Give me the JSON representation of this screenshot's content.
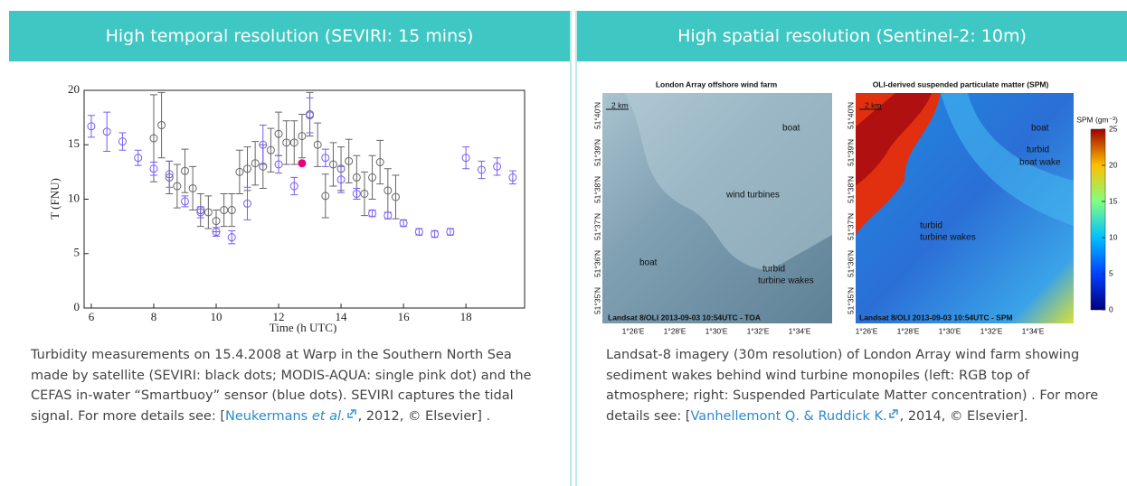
{
  "left_panel": {
    "title": "High temporal resolution (SEVIRI: 15 mins)",
    "chart_data": {
      "type": "scatter",
      "xlabel": "Time (h UTC)",
      "ylabel": "T (FNU)",
      "xlim": [
        5.77,
        19.88
      ],
      "ylim": [
        0,
        20
      ],
      "xticks": [
        6,
        8,
        10,
        12,
        14,
        16,
        18
      ],
      "yticks": [
        0,
        5,
        10,
        15,
        20
      ],
      "series": [
        {
          "color": "#666666",
          "marker": "open",
          "x": [
            8.0,
            8.25,
            8.5,
            8.75,
            9.0,
            9.25,
            9.5,
            9.75,
            10.0,
            10.25,
            10.5,
            10.75,
            11.0,
            11.25,
            11.5,
            11.75,
            12.0,
            12.25,
            12.5,
            12.75,
            13.0,
            13.25,
            13.5,
            13.75,
            14.0,
            14.25,
            14.5,
            14.75,
            15.0,
            15.25,
            15.5,
            15.75
          ],
          "values": [
            15.6,
            16.8,
            12.0,
            11.2,
            12.6,
            11.0,
            9.0,
            8.8,
            8.0,
            9.0,
            9.0,
            12.5,
            12.8,
            13.3,
            13.0,
            14.5,
            16.0,
            15.2,
            15.2,
            15.8,
            17.8,
            15.0,
            10.3,
            13.2,
            12.8,
            13.5,
            12.0,
            10.5,
            12.0,
            13.4,
            10.8,
            10.2
          ],
          "errors": [
            4.0,
            3.0,
            1.5,
            2.0,
            2.0,
            2.0,
            1.5,
            1.5,
            1.0,
            1.5,
            1.5,
            2.0,
            2.0,
            2.0,
            2.0,
            2.0,
            2.0,
            2.0,
            2.0,
            2.0,
            2.0,
            2.0,
            2.0,
            2.0,
            2.0,
            2.0,
            2.0,
            2.0,
            2.0,
            2.0,
            2.0,
            2.0
          ]
        },
        {
          "color": "#7b5cf0",
          "marker": "open",
          "x": [
            6.0,
            6.5,
            7.0,
            7.5,
            8.0,
            8.5,
            9.0,
            9.5,
            10.0,
            10.5,
            11.0,
            11.5,
            12.0,
            12.5,
            13.0,
            13.5,
            14.0,
            14.5,
            15.0,
            15.5,
            16.0,
            16.5,
            17.0,
            17.5,
            18.0,
            18.5,
            19.0,
            19.5
          ],
          "values": [
            16.7,
            16.2,
            15.3,
            13.8,
            12.8,
            12.3,
            9.8,
            8.8,
            7.0,
            6.5,
            9.6,
            15.0,
            13.2,
            11.2,
            17.7,
            13.8,
            11.8,
            10.5,
            8.7,
            8.5,
            7.8,
            7.0,
            6.8,
            7.0,
            13.8,
            12.7,
            13.0,
            12.0
          ],
          "errors": [
            1.0,
            1.8,
            0.8,
            0.7,
            0.6,
            1.2,
            0.5,
            0.5,
            0.4,
            0.6,
            1.5,
            1.8,
            0.8,
            0.8,
            1.6,
            0.8,
            1.2,
            0.5,
            0.3,
            0.3,
            0.3,
            0.3,
            0.3,
            0.3,
            1.0,
            0.8,
            0.8,
            0.6
          ]
        },
        {
          "color": "#e6007e",
          "marker": "filled",
          "x": [
            12.75
          ],
          "values": [
            13.3
          ]
        }
      ]
    },
    "caption": {
      "text": "Turbidity measurements on 15.4.2008 at Warp in the Southern North Sea made by satellite (SEVIRI: black dots; MODIS-AQUA: single pink dot) and the CEFAS in-water “Smartbuoy” sensor (blue dots). SEVIRI captures the tidal signal. For more details see: [",
      "link_author": "Neukermans ",
      "link_etal": "et al.",
      "after": ", 2012, © Elsevier] ."
    }
  },
  "right_panel": {
    "title": "High spatial resolution (Sentinel-2: 10m)",
    "left_image": {
      "title": "London Array offshore wind farm",
      "scale": "2 km",
      "boat_top": "boat",
      "boat_left": "boat",
      "turbines": "wind turbines",
      "wakes": [
        "turbid",
        "turbine wakes"
      ],
      "footer": "Landsat 8/OLI 2013-09-03 10:54UTC - TOA"
    },
    "right_image": {
      "title": "OLI-derived suspended particulate matter (SPM)",
      "scale": "2 km",
      "boat": "boat",
      "boat_wake": [
        "turbid",
        "boat wake"
      ],
      "wakes": [
        "turbid",
        "turbine wakes"
      ],
      "footer": "Landsat 8/OLI 2013-09-03 10:54UTC - SPM",
      "colorbar": {
        "label": "SPM (gm⁻³)",
        "lim": [
          0,
          25
        ],
        "ticks": [
          0,
          5,
          10,
          15,
          20,
          25
        ]
      }
    },
    "lat_labels": [
      "51°40'N",
      "51°39'N",
      "51°38'N",
      "51°37'N",
      "51°36'N",
      "51°35'N"
    ],
    "lon_labels": [
      "1°26'E",
      "1°28'E",
      "1°30'E",
      "1°32'E",
      "1°34'E"
    ],
    "caption": {
      "text": "Landsat-8 imagery (30m resolution) of London Array wind farm showing sediment wakes behind wind turbine monopiles (left: RGB top of atmosphere; right: Suspended Particulate Matter concentration) . For more details see: [",
      "link": "Vanhellemont Q. & Ruddick K.",
      "after": ", 2014, © Elsevier]."
    }
  }
}
